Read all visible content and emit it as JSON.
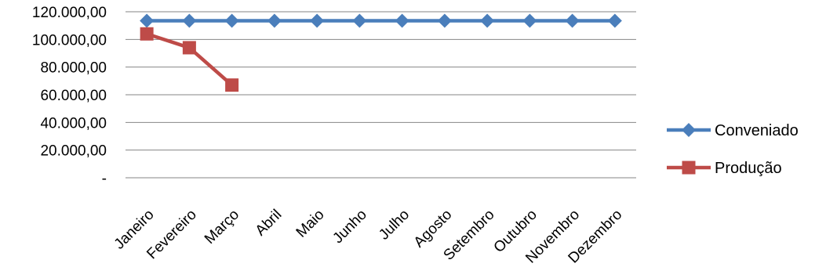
{
  "chart_data": {
    "type": "line",
    "categories": [
      "Janeiro",
      "Fevereiro",
      "Março",
      "Abril",
      "Maio",
      "Junho",
      "Julho",
      "Agosto",
      "Setembro",
      "Outubro",
      "Novembro",
      "Dezembro"
    ],
    "series": [
      {
        "name": "Conveniado",
        "values": [
          113500,
          113500,
          113500,
          113500,
          113500,
          113500,
          113500,
          113500,
          113500,
          113500,
          113500,
          113500
        ],
        "color": "#4a7ebb",
        "marker": "diamond"
      },
      {
        "name": "Produção",
        "values": [
          104000,
          94000,
          67000,
          null,
          null,
          null,
          null,
          null,
          null,
          null,
          null,
          null
        ],
        "color": "#be4b48",
        "marker": "square"
      }
    ],
    "y_ticks": [
      "-",
      "20.000,00",
      "40.000,00",
      "60.000,00",
      "80.000,00",
      "100.000,00",
      "120.000,00"
    ],
    "ylim": [
      0,
      120000
    ],
    "grid": true,
    "legend_position": "right"
  }
}
